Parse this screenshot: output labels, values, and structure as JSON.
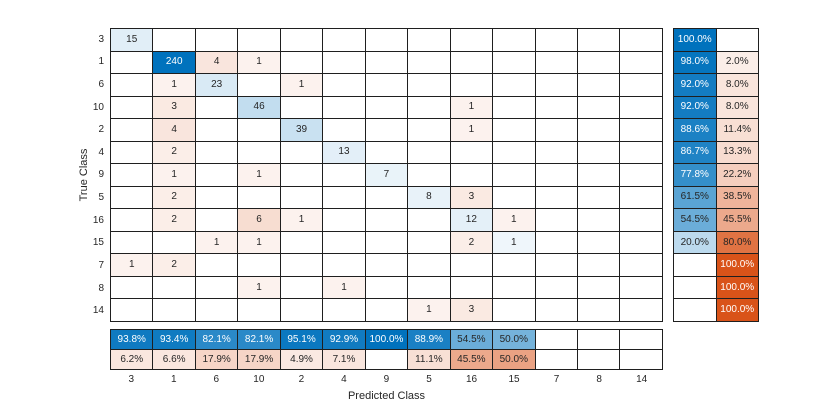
{
  "chart_data": {
    "type": "heatmap",
    "subtype": "confusion-matrix",
    "title": "",
    "xlabel": "Predicted Class",
    "ylabel": "True Class",
    "classes": [
      "3",
      "1",
      "6",
      "10",
      "2",
      "4",
      "9",
      "5",
      "16",
      "15",
      "7",
      "8",
      "14"
    ],
    "matrix": [
      [
        15,
        0,
        0,
        0,
        0,
        0,
        0,
        0,
        0,
        0,
        0,
        0,
        0
      ],
      [
        0,
        240,
        4,
        1,
        0,
        0,
        0,
        0,
        0,
        0,
        0,
        0,
        0
      ],
      [
        0,
        1,
        23,
        0,
        1,
        0,
        0,
        0,
        0,
        0,
        0,
        0,
        0
      ],
      [
        0,
        3,
        0,
        46,
        0,
        0,
        0,
        0,
        1,
        0,
        0,
        0,
        0
      ],
      [
        0,
        4,
        0,
        0,
        39,
        0,
        0,
        0,
        1,
        0,
        0,
        0,
        0
      ],
      [
        0,
        2,
        0,
        0,
        0,
        13,
        0,
        0,
        0,
        0,
        0,
        0,
        0
      ],
      [
        0,
        1,
        0,
        1,
        0,
        0,
        7,
        0,
        0,
        0,
        0,
        0,
        0
      ],
      [
        0,
        2,
        0,
        0,
        0,
        0,
        0,
        8,
        3,
        0,
        0,
        0,
        0
      ],
      [
        0,
        2,
        0,
        6,
        1,
        0,
        0,
        0,
        12,
        1,
        0,
        0,
        0
      ],
      [
        0,
        0,
        1,
        1,
        0,
        0,
        0,
        0,
        2,
        1,
        0,
        0,
        0
      ],
      [
        1,
        2,
        0,
        0,
        0,
        0,
        0,
        0,
        0,
        0,
        0,
        0,
        0
      ],
      [
        0,
        0,
        0,
        1,
        0,
        1,
        0,
        0,
        0,
        0,
        0,
        0,
        0
      ],
      [
        0,
        0,
        0,
        0,
        0,
        0,
        0,
        1,
        3,
        0,
        0,
        0,
        0
      ]
    ],
    "row_summary": {
      "correct": [
        "100.0%",
        "98.0%",
        "92.0%",
        "92.0%",
        "88.6%",
        "86.7%",
        "77.8%",
        "61.5%",
        "54.5%",
        "20.0%",
        "",
        "",
        ""
      ],
      "incorrect": [
        "",
        "2.0%",
        "8.0%",
        "8.0%",
        "11.4%",
        "13.3%",
        "22.2%",
        "38.5%",
        "45.5%",
        "80.0%",
        "100.0%",
        "100.0%",
        "100.0%"
      ]
    },
    "column_summary": {
      "correct": [
        "93.8%",
        "93.4%",
        "82.1%",
        "82.1%",
        "95.1%",
        "92.9%",
        "100.0%",
        "88.9%",
        "54.5%",
        "50.0%",
        "",
        "",
        ""
      ],
      "incorrect": [
        "6.2%",
        "6.6%",
        "17.9%",
        "17.9%",
        "4.9%",
        "7.1%",
        "",
        "11.1%",
        "45.5%",
        "50.0%",
        "",
        "",
        ""
      ]
    },
    "colors": {
      "correct_blue": "#0072BD",
      "incorrect_orange": "#D95319",
      "grid_line": "#1f1f1f",
      "text_dark": "#262626",
      "text_light": "#ffffff",
      "background": "#ffffff"
    },
    "layout": {
      "grid_on": true,
      "max_diagonal_count": 240
    }
  }
}
